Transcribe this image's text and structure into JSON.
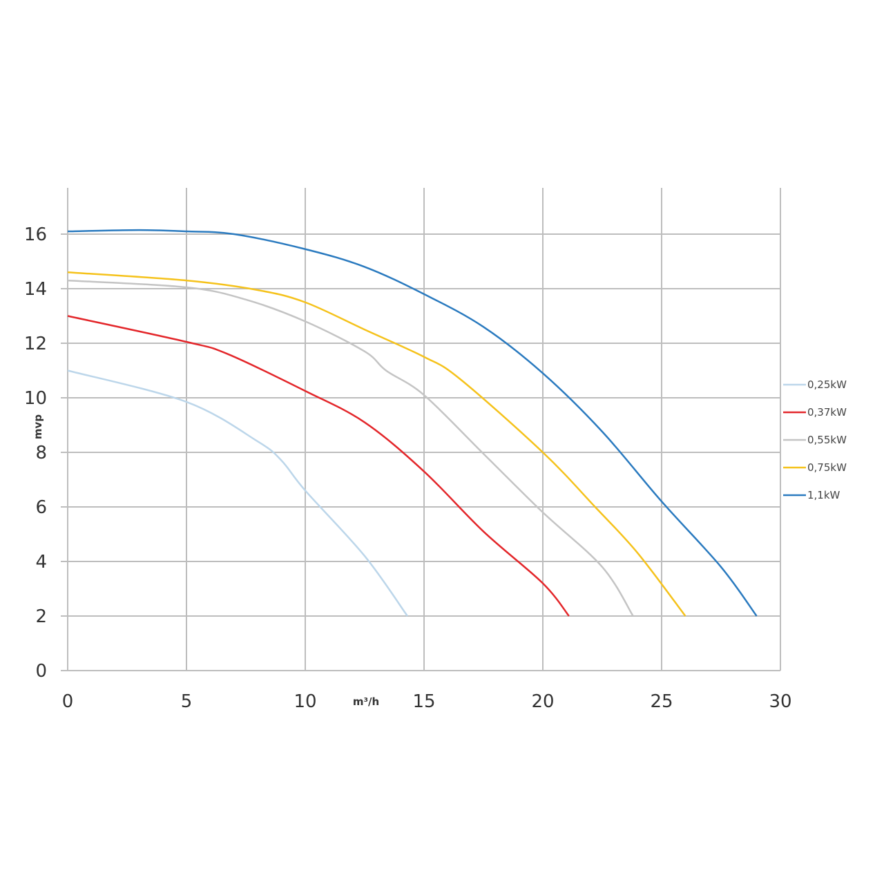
{
  "chart_data": {
    "type": "line",
    "xlabel": "m³/h",
    "ylabel": "mvp",
    "xlim": [
      0,
      30
    ],
    "ylim": [
      0,
      16
    ],
    "xticks": [
      0,
      5,
      10,
      15,
      20,
      25,
      30
    ],
    "yticks": [
      0,
      2,
      4,
      6,
      8,
      10,
      12,
      14,
      16
    ],
    "grid": true,
    "legend_position": "right",
    "series": [
      {
        "name": "0,25kW",
        "color": "#bcd6ea",
        "points": [
          [
            0,
            11
          ],
          [
            5,
            9.85
          ],
          [
            8,
            8.4
          ],
          [
            9,
            7.7
          ],
          [
            10,
            6.6
          ],
          [
            12.5,
            4.2
          ],
          [
            14.3,
            2
          ]
        ]
      },
      {
        "name": "0,37kW",
        "color": "#e3262a",
        "points": [
          [
            0,
            13
          ],
          [
            5,
            12.05
          ],
          [
            6.75,
            11.6
          ],
          [
            10,
            10.25
          ],
          [
            12.5,
            9.1
          ],
          [
            15,
            7.3
          ],
          [
            17.5,
            5.1
          ],
          [
            20,
            3.2
          ],
          [
            21.1,
            2
          ]
        ]
      },
      {
        "name": "0,55kW",
        "color": "#c4c4c4",
        "points": [
          [
            0,
            14.3
          ],
          [
            5,
            14.05
          ],
          [
            7.5,
            13.6
          ],
          [
            10,
            12.8
          ],
          [
            12.5,
            11.7
          ],
          [
            13.4,
            11.0
          ],
          [
            15,
            10.1
          ],
          [
            17.5,
            7.95
          ],
          [
            20,
            5.8
          ],
          [
            22.5,
            3.8
          ],
          [
            23.8,
            2
          ]
        ]
      },
      {
        "name": "0,75kW",
        "color": "#f5c21b",
        "points": [
          [
            0,
            14.6
          ],
          [
            5,
            14.3
          ],
          [
            8,
            13.95
          ],
          [
            10,
            13.5
          ],
          [
            12.5,
            12.5
          ],
          [
            15,
            11.5
          ],
          [
            16.5,
            10.7
          ],
          [
            20,
            8
          ],
          [
            22.2,
            6
          ],
          [
            24,
            4.3
          ],
          [
            26,
            2
          ]
        ]
      },
      {
        "name": "1,1kW",
        "color": "#2a7abf",
        "points": [
          [
            0,
            16.1
          ],
          [
            3,
            16.15
          ],
          [
            5,
            16.1
          ],
          [
            7,
            16.0
          ],
          [
            10,
            15.45
          ],
          [
            12.5,
            14.8
          ],
          [
            15,
            13.8
          ],
          [
            17.5,
            12.6
          ],
          [
            20,
            10.9
          ],
          [
            22.5,
            8.76
          ],
          [
            25,
            6.2
          ],
          [
            27.5,
            3.8
          ],
          [
            29,
            2
          ]
        ]
      }
    ]
  }
}
